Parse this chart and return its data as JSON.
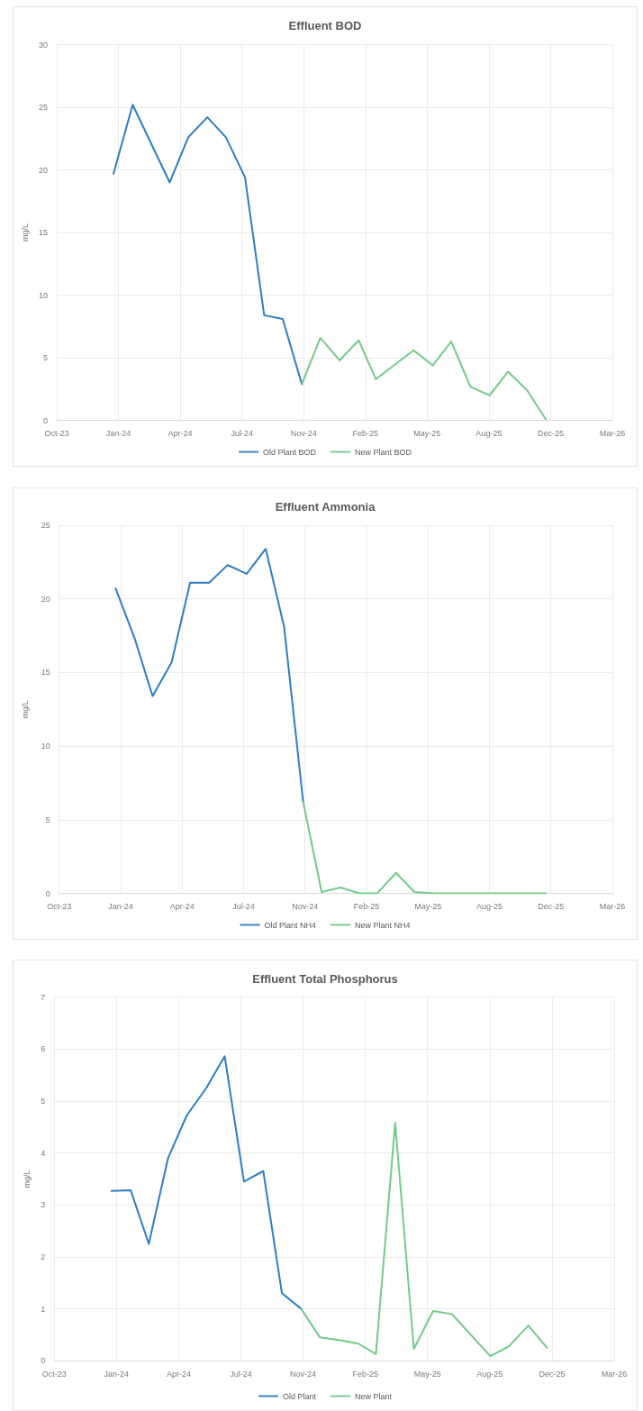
{
  "chart_data": [
    {
      "type": "line",
      "title": "Effluent BOD",
      "ylabel": "mg/L",
      "xlim": [
        "2023-10-01",
        "2026-03-19"
      ],
      "xticks": [
        {
          "value": "2023-10-01",
          "label": "Oct-23"
        },
        {
          "value": "2024-01-09",
          "label": "Jan-24"
        },
        {
          "value": "2024-04-18",
          "label": "Apr-24"
        },
        {
          "value": "2024-07-27",
          "label": "Jul-24"
        },
        {
          "value": "2024-11-04",
          "label": "Nov-24"
        },
        {
          "value": "2025-02-12",
          "label": "Feb-25"
        },
        {
          "value": "2025-05-23",
          "label": "May-25"
        },
        {
          "value": "2025-08-31",
          "label": "Aug-25"
        },
        {
          "value": "2025-12-09",
          "label": "Dec-25"
        },
        {
          "value": "2026-03-19",
          "label": "Mar-26"
        }
      ],
      "ylim": [
        0,
        30
      ],
      "yticks": [
        0,
        5,
        10,
        15,
        20,
        25,
        30
      ],
      "grid": true,
      "legend": "bottom",
      "series": [
        {
          "name": "Old Plant BOD",
          "color": "#2f7dc4",
          "x": [
            "2024-01-01",
            "2024-02-01",
            "2024-04-01",
            "2024-05-01",
            "2024-06-01",
            "2024-07-01",
            "2024-08-01",
            "2024-09-01",
            "2024-10-01",
            "2024-11-01"
          ],
          "values": [
            19.7,
            25.2,
            19.0,
            22.6,
            24.2,
            22.6,
            19.4,
            8.4,
            8.1,
            2.9
          ]
        },
        {
          "name": "New Plant BOD",
          "color": "#74c98a",
          "x": [
            "2024-11-01",
            "2024-12-01",
            "2025-01-01",
            "2025-02-01",
            "2025-03-01",
            "2025-05-01",
            "2025-06-01",
            "2025-07-01",
            "2025-08-01",
            "2025-09-01",
            "2025-10-01",
            "2025-11-01",
            "2025-12-01"
          ],
          "values": [
            2.9,
            6.6,
            4.8,
            6.4,
            3.3,
            5.6,
            4.4,
            6.3,
            2.7,
            2.0,
            3.9,
            2.4,
            0.1
          ]
        }
      ]
    },
    {
      "type": "line",
      "title": "Effluent Ammonia",
      "ylabel": "mg/L",
      "xlim": [
        "2023-10-01",
        "2026-03-19"
      ],
      "xticks": [
        {
          "value": "2023-10-01",
          "label": "Oct-23"
        },
        {
          "value": "2024-01-09",
          "label": "Jan-24"
        },
        {
          "value": "2024-04-18",
          "label": "Apr-24"
        },
        {
          "value": "2024-07-27",
          "label": "Jul-24"
        },
        {
          "value": "2024-11-04",
          "label": "Nov-24"
        },
        {
          "value": "2025-02-12",
          "label": "Feb-25"
        },
        {
          "value": "2025-05-23",
          "label": "May-25"
        },
        {
          "value": "2025-08-31",
          "label": "Aug-25"
        },
        {
          "value": "2025-12-09",
          "label": "Dec-25"
        },
        {
          "value": "2026-03-19",
          "label": "Mar-26"
        }
      ],
      "ylim": [
        0,
        25
      ],
      "yticks": [
        0,
        5,
        10,
        15,
        20,
        25
      ],
      "grid": true,
      "legend": "bottom",
      "series": [
        {
          "name": "Old Plant NH4",
          "color": "#2f7dc4",
          "x": [
            "2024-01-01",
            "2024-02-01",
            "2024-03-01",
            "2024-04-01",
            "2024-05-01",
            "2024-06-01",
            "2024-07-01",
            "2024-08-01",
            "2024-09-01",
            "2024-10-01",
            "2024-11-01"
          ],
          "values": [
            20.7,
            17.3,
            13.4,
            15.7,
            21.1,
            21.1,
            22.3,
            21.7,
            23.4,
            18.1,
            6.2
          ]
        },
        {
          "name": "New Plant NH4",
          "color": "#74c98a",
          "x": [
            "2024-11-01",
            "2024-12-01",
            "2025-01-01",
            "2025-02-01",
            "2025-03-01",
            "2025-04-01",
            "2025-05-01",
            "2025-06-01",
            "2025-07-01",
            "2025-08-01",
            "2025-09-01",
            "2025-10-01",
            "2025-11-01",
            "2025-12-01"
          ],
          "values": [
            6.2,
            0.1,
            0.4,
            0.0,
            0.0,
            1.4,
            0.1,
            0.0,
            0.0,
            0.0,
            0.0,
            0.0,
            0.0,
            0.0
          ]
        }
      ]
    },
    {
      "type": "line",
      "title": "Effluent Total Phosphorus",
      "ylabel": "mg/L",
      "xlim": [
        "2023-10-01",
        "2026-03-19"
      ],
      "xticks": [
        {
          "value": "2023-10-01",
          "label": "Oct-23"
        },
        {
          "value": "2024-01-09",
          "label": "Jan-24"
        },
        {
          "value": "2024-04-18",
          "label": "Apr-24"
        },
        {
          "value": "2024-07-27",
          "label": "Jul-24"
        },
        {
          "value": "2024-11-04",
          "label": "Nov-24"
        },
        {
          "value": "2025-02-12",
          "label": "Feb-25"
        },
        {
          "value": "2025-05-23",
          "label": "May-25"
        },
        {
          "value": "2025-08-31",
          "label": "Aug-25"
        },
        {
          "value": "2025-12-09",
          "label": "Dec-25"
        },
        {
          "value": "2026-03-19",
          "label": "Mar-26"
        }
      ],
      "ylim": [
        0,
        7
      ],
      "yticks": [
        0,
        1,
        2,
        3,
        4,
        5,
        6,
        7
      ],
      "grid": true,
      "legend": "bottom",
      "series": [
        {
          "name": "Old Plant",
          "color": "#2f7dc4",
          "x": [
            "2024-01-01",
            "2024-02-01",
            "2024-03-01",
            "2024-04-01",
            "2024-05-01",
            "2024-06-01",
            "2024-07-01",
            "2024-08-01",
            "2024-09-01",
            "2024-10-01",
            "2024-11-01"
          ],
          "values": [
            3.27,
            3.28,
            2.25,
            3.9,
            4.72,
            5.24,
            5.86,
            3.45,
            3.65,
            1.3,
            1.0
          ]
        },
        {
          "name": "New Plant",
          "color": "#74c98a",
          "x": [
            "2024-11-01",
            "2024-12-01",
            "2025-01-01",
            "2025-02-01",
            "2025-03-01",
            "2025-04-01",
            "2025-05-01",
            "2025-06-01",
            "2025-07-01",
            "2025-09-01",
            "2025-10-01",
            "2025-11-01",
            "2025-12-01"
          ],
          "values": [
            1.0,
            0.45,
            0.4,
            0.33,
            0.13,
            4.58,
            0.23,
            0.96,
            0.9,
            0.09,
            0.28,
            0.68,
            0.25
          ]
        }
      ]
    }
  ]
}
